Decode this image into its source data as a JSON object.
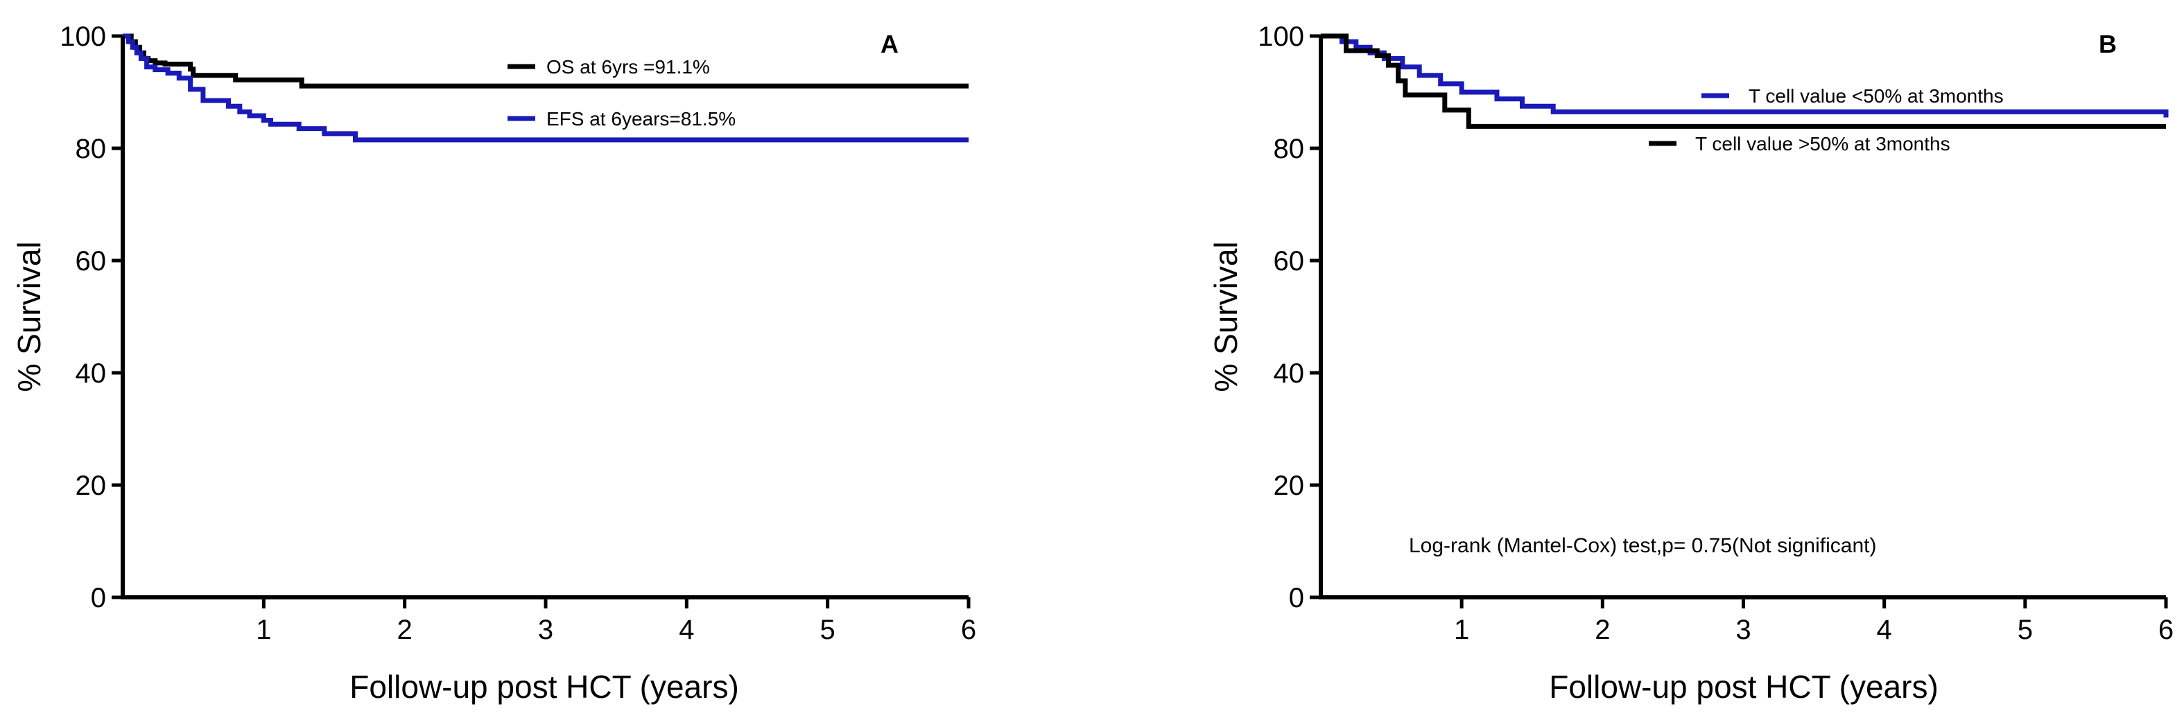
{
  "chart_data": [
    {
      "type": "line",
      "subtype": "kaplan-meier",
      "title": "",
      "panel_label": "A",
      "xlabel": "Follow-up post HCT (years)",
      "ylabel": "% Survival",
      "xlim": [
        0,
        6
      ],
      "ylim": [
        0,
        100
      ],
      "x_ticks": [
        1,
        2,
        3,
        4,
        5,
        6
      ],
      "x_tick_labels": [
        "1",
        "2",
        "3",
        "4",
        "5",
        "6"
      ],
      "y_ticks": [
        0,
        20,
        40,
        60,
        80,
        100
      ],
      "y_tick_labels": [
        "0",
        "20",
        "40",
        "60",
        "80",
        "100"
      ],
      "grid": false,
      "legend_position": "top-center",
      "annotation": "",
      "series": [
        {
          "name": "OS at 6yrs =91.1%",
          "color": "#000000",
          "times": [
            0.0,
            0.06,
            0.09,
            0.12,
            0.15,
            0.18,
            0.23,
            0.3,
            0.48,
            0.5,
            0.8,
            1.27,
            6.0
          ],
          "values": [
            100,
            99,
            98,
            97,
            96,
            95.6,
            95.2,
            95,
            94.1,
            93,
            92.2,
            91.1,
            91.1
          ]
        },
        {
          "name": "EFS at 6years=81.5%",
          "color": "#1a1ab8",
          "times": [
            0.0,
            0.04,
            0.07,
            0.1,
            0.13,
            0.17,
            0.23,
            0.32,
            0.4,
            0.48,
            0.57,
            0.75,
            0.83,
            0.9,
            1.0,
            1.05,
            1.25,
            1.43,
            1.65,
            6.0
          ],
          "values": [
            100,
            99,
            98,
            97,
            96,
            94.5,
            94,
            93.4,
            92.5,
            90.5,
            88.5,
            87.5,
            86.5,
            85.8,
            85,
            84.3,
            83.5,
            82.6,
            81.5,
            81.5
          ]
        }
      ]
    },
    {
      "type": "line",
      "subtype": "kaplan-meier",
      "title": "",
      "panel_label": "B",
      "xlabel": "Follow-up post HCT (years)",
      "ylabel": "% Survival",
      "xlim": [
        0,
        6
      ],
      "ylim": [
        0,
        100
      ],
      "x_ticks": [
        1,
        2,
        3,
        4,
        5,
        6
      ],
      "x_tick_labels": [
        "1",
        "2",
        "3",
        "4",
        "5",
        "6"
      ],
      "y_ticks": [
        0,
        20,
        40,
        60,
        80,
        100
      ],
      "y_tick_labels": [
        "0",
        "20",
        "40",
        "60",
        "80",
        "100"
      ],
      "grid": false,
      "legend_position": "top-right",
      "annotation": "Log-rank (Mantel-Cox) test,p= 0.75(Not significant)",
      "series": [
        {
          "name": "T cell value <50% at 3months",
          "color": "#1a1ab8",
          "times": [
            0.0,
            0.15,
            0.25,
            0.35,
            0.45,
            0.58,
            0.7,
            0.85,
            1.0,
            1.25,
            1.43,
            1.65,
            6.0
          ],
          "values": [
            100,
            99,
            98,
            97,
            96,
            94.5,
            93,
            91.5,
            90,
            88.8,
            87.5,
            86.5,
            85.5
          ]
        },
        {
          "name": "T cell value >50% at 3months",
          "color": "#000000",
          "times": [
            0.0,
            0.18,
            0.4,
            0.48,
            0.55,
            0.6,
            0.88,
            1.05,
            6.0
          ],
          "values": [
            100,
            97.4,
            96.5,
            94.8,
            92,
            89.5,
            86.8,
            83.9,
            83.9
          ]
        }
      ]
    }
  ]
}
